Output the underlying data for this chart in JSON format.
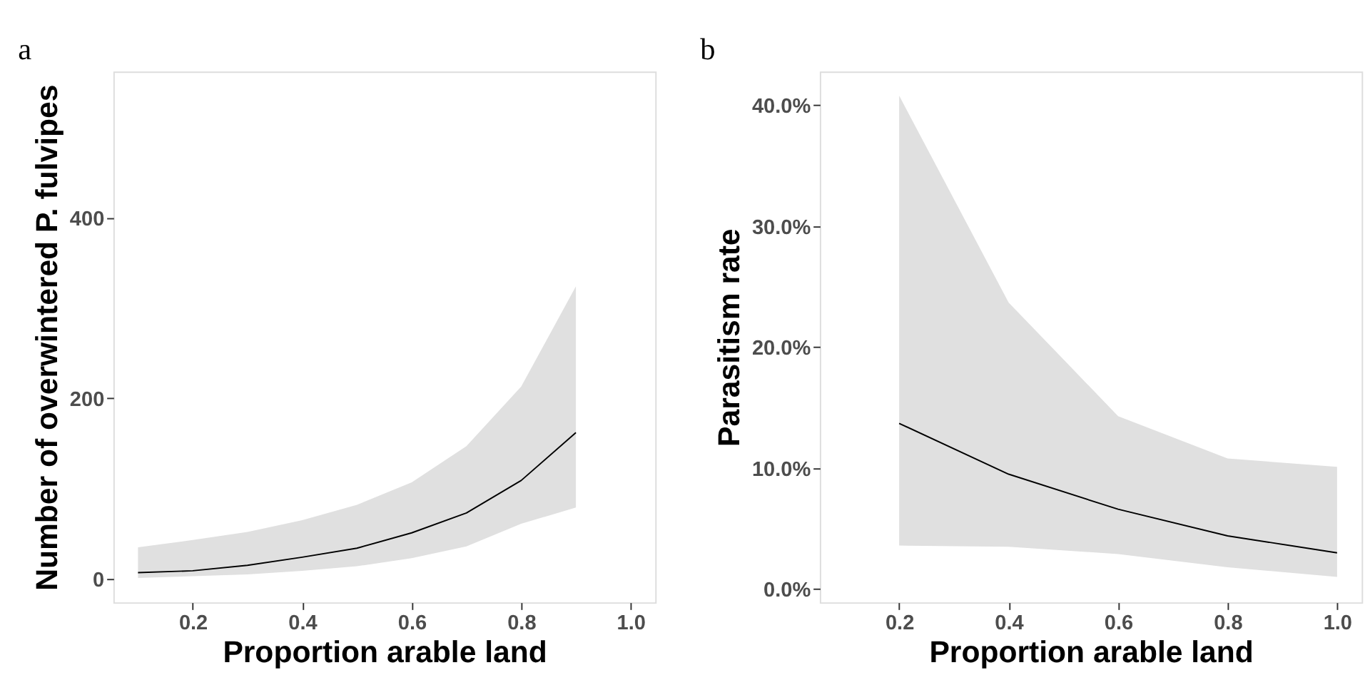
{
  "chart_data": [
    {
      "type": "line",
      "title": "a",
      "xlabel": "Proportion arable land",
      "ylabel": "Number of overwintered P. fulvipes",
      "x": [
        0.1,
        0.2,
        0.3,
        0.4,
        0.5,
        0.6,
        0.7,
        0.8,
        0.9
      ],
      "series": [
        {
          "color": "#000000",
          "values": [
            7,
            9,
            15,
            24,
            34,
            51,
            73,
            109,
            162
          ],
          "lower": [
            1,
            3,
            5,
            9,
            14,
            23,
            36,
            61,
            79
          ],
          "upper": [
            35,
            43,
            52,
            65,
            82,
            107,
            147,
            213,
            324
          ]
        }
      ],
      "xlim": [
        0.055,
        1.045
      ],
      "xticks": [
        0.2,
        0.4,
        0.6,
        0.8,
        {
          "value": 1.0,
          "label": "1.0"
        }
      ],
      "ylim": [
        -26,
        562
      ],
      "yticks": [
        0,
        200,
        400
      ],
      "grid": false
    },
    {
      "type": "line",
      "title": "b",
      "xlabel": "Proportion arable land",
      "ylabel": "Parasitism rate",
      "x": [
        0.2,
        0.4,
        0.6,
        0.8,
        1.0
      ],
      "series": [
        {
          "color": "#000000",
          "values": [
            13.7,
            9.5,
            6.6,
            4.4,
            3.0
          ],
          "lower": [
            3.6,
            3.5,
            2.9,
            1.8,
            1.0
          ],
          "upper": [
            40.8,
            23.7,
            14.3,
            10.8,
            10.1
          ]
        }
      ],
      "xlim": [
        0.055,
        1.045
      ],
      "xticks": [
        0.2,
        0.4,
        0.6,
        0.8,
        {
          "value": 1.0,
          "label": "1.0"
        }
      ],
      "ylim": [
        -1.1,
        42.8
      ],
      "yticks": [
        {
          "value": 0,
          "label": "0.0%"
        },
        {
          "value": 10,
          "label": "10.0%"
        },
        {
          "value": 20,
          "label": "20.0%"
        },
        {
          "value": 30,
          "label": "30.0%"
        },
        {
          "value": 40,
          "label": "40.0%"
        }
      ],
      "grid": false
    }
  ]
}
